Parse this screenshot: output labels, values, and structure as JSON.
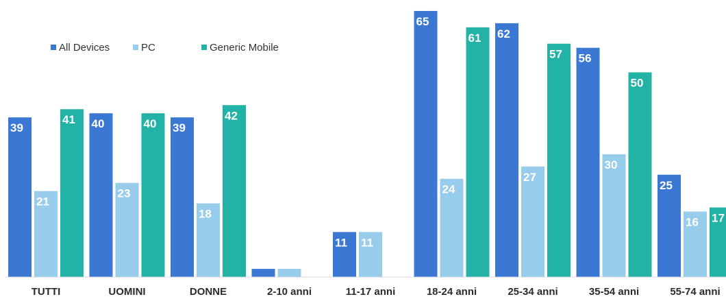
{
  "chart_data": {
    "type": "bar",
    "title": "",
    "xlabel": "",
    "ylabel": "",
    "categories": [
      "TUTTI",
      "UOMINI",
      "DONNE",
      "2-10 anni",
      "11-17 anni",
      "18-24 anni",
      "25-34 anni",
      "35-54 anni",
      "55-74 anni"
    ],
    "series": [
      {
        "name": "All Devices",
        "color": "#3a78d4",
        "values": [
          39,
          40,
          39,
          2,
          11,
          65,
          62,
          56,
          25
        ],
        "labels": [
          "39",
          "40",
          "39",
          "",
          "11",
          "65",
          "62",
          "56",
          "25"
        ]
      },
      {
        "name": "PC",
        "color": "#97cdea",
        "values": [
          21,
          23,
          18,
          2,
          11,
          24,
          27,
          30,
          16
        ],
        "labels": [
          "21",
          "23",
          "18",
          "",
          "11",
          "24",
          "27",
          "30",
          "16"
        ]
      },
      {
        "name": "Generic Mobile",
        "color": "#23b2a6",
        "values": [
          41,
          40,
          42,
          null,
          null,
          61,
          57,
          50,
          17
        ],
        "labels": [
          "41",
          "40",
          "42",
          "",
          "",
          "61",
          "57",
          "50",
          "17"
        ]
      }
    ],
    "ylim": [
      0,
      70
    ],
    "grid": false,
    "legend": "top-left"
  }
}
